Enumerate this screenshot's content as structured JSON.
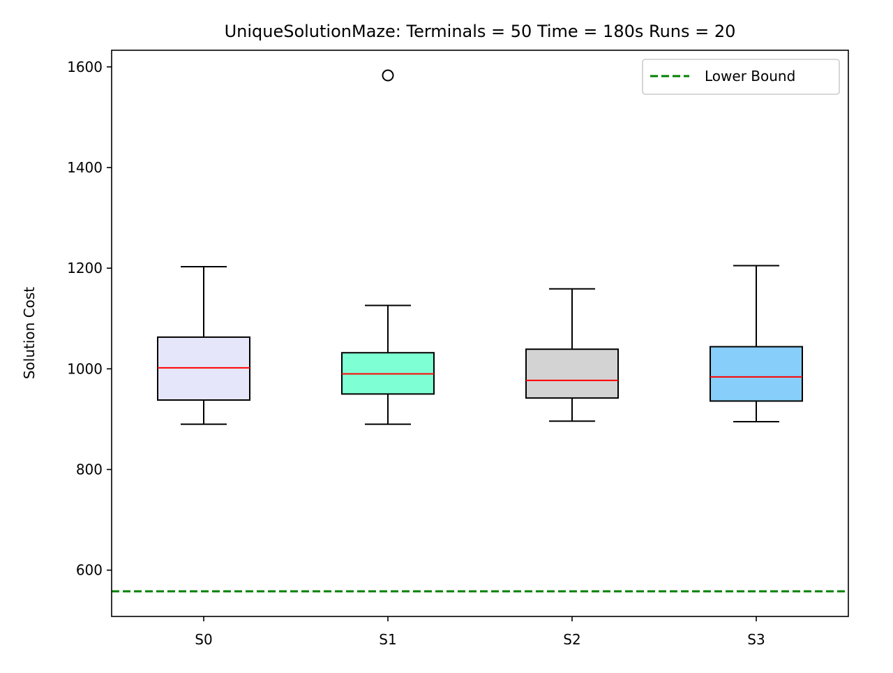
{
  "chart_data": {
    "type": "box",
    "title": "UniqueSolutionMaze:  Terminals = 50  Time = 180s  Runs = 20",
    "xlabel": "",
    "ylabel": "Solution Cost",
    "ylim": [
      508,
      1633
    ],
    "yticks": [
      600,
      800,
      1000,
      1200,
      1400,
      1600
    ],
    "categories": [
      "S0",
      "S1",
      "S2",
      "S3"
    ],
    "boxes": [
      {
        "name": "S0",
        "whisker_low": 890,
        "q1": 938,
        "median": 1002,
        "q3": 1063,
        "whisker_high": 1203,
        "fliers": [],
        "color": "#e6e6fa"
      },
      {
        "name": "S1",
        "whisker_low": 890,
        "q1": 950,
        "median": 990,
        "q3": 1032,
        "whisker_high": 1126,
        "fliers": [
          1583
        ],
        "color": "#7fffd4"
      },
      {
        "name": "S2",
        "whisker_low": 896,
        "q1": 942,
        "median": 977,
        "q3": 1039,
        "whisker_high": 1159,
        "fliers": [],
        "color": "#d3d3d3"
      },
      {
        "name": "S3",
        "whisker_low": 895,
        "q1": 936,
        "median": 984,
        "q3": 1044,
        "whisker_high": 1205,
        "fliers": [],
        "color": "#87cefa"
      }
    ],
    "reference_lines": [
      {
        "name": "Lower Bound",
        "y": 558,
        "color": "#008000",
        "style": "dashed"
      }
    ],
    "median_color": "#ff0000",
    "grid": false,
    "legend_position": "upper right"
  }
}
